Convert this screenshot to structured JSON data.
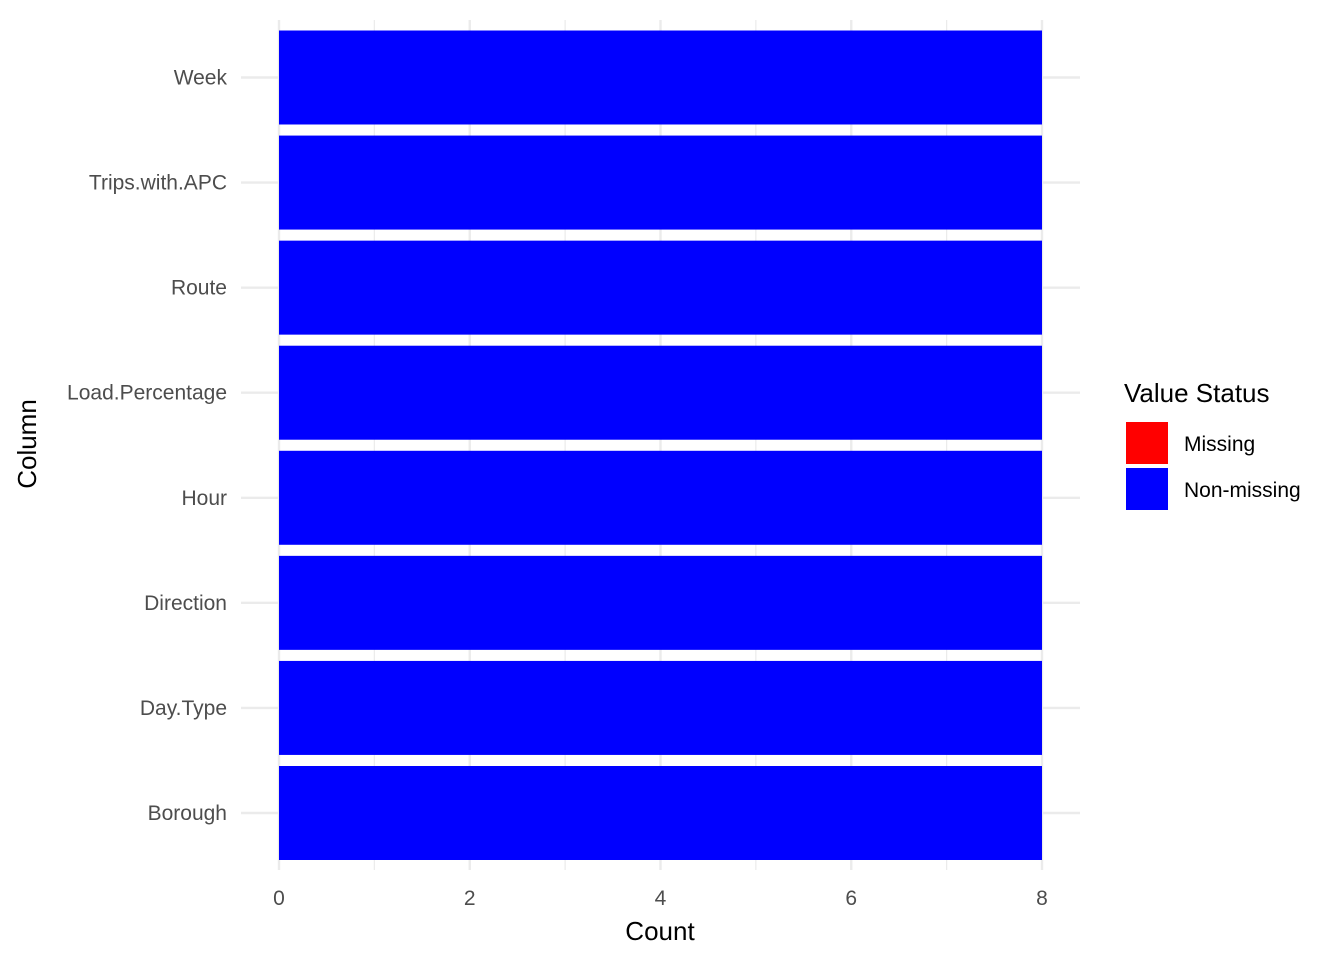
{
  "chart_data": {
    "type": "bar",
    "orientation": "horizontal",
    "stacked": true,
    "categories": [
      "Week",
      "Trips.with.APC",
      "Route",
      "Load.Percentage",
      "Hour",
      "Direction",
      "Day.Type",
      "Borough"
    ],
    "series": [
      {
        "name": "Missing",
        "color": "#ff0000",
        "values": [
          0,
          0,
          0,
          0,
          0,
          0,
          0,
          0
        ]
      },
      {
        "name": "Non-missing",
        "color": "#0000ff",
        "values": [
          8,
          8,
          8,
          8,
          8,
          8,
          8,
          8
        ]
      }
    ],
    "xlabel": "Count",
    "ylabel": "Column",
    "xlim": [
      0,
      8
    ],
    "xticks": [
      0,
      2,
      4,
      6,
      8
    ],
    "grid": true,
    "legend": {
      "title": "Value Status",
      "position": "right"
    }
  }
}
